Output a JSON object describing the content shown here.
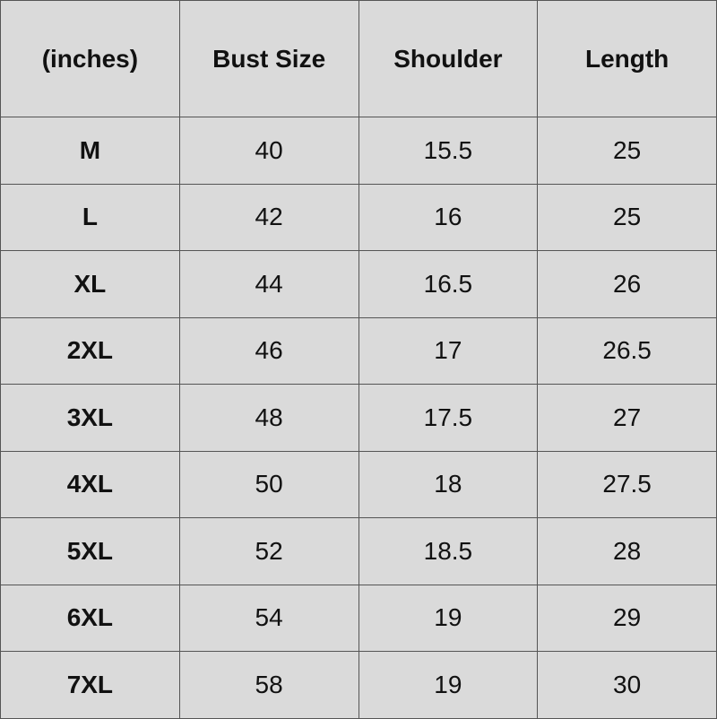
{
  "headers": [
    "(inches)",
    "Bust Size",
    "Shoulder",
    "Length"
  ],
  "rows": [
    [
      "M",
      "40",
      "15.5",
      "25"
    ],
    [
      "L",
      "42",
      "16",
      "25"
    ],
    [
      "XL",
      "44",
      "16.5",
      "26"
    ],
    [
      "2XL",
      "46",
      "17",
      "26.5"
    ],
    [
      "3XL",
      "48",
      "17.5",
      "27"
    ],
    [
      "4XL",
      "50",
      "18",
      "27.5"
    ],
    [
      "5XL",
      "52",
      "18.5",
      "28"
    ],
    [
      "6XL",
      "54",
      "19",
      "29"
    ],
    [
      "7XL",
      "58",
      "19",
      "30"
    ]
  ]
}
